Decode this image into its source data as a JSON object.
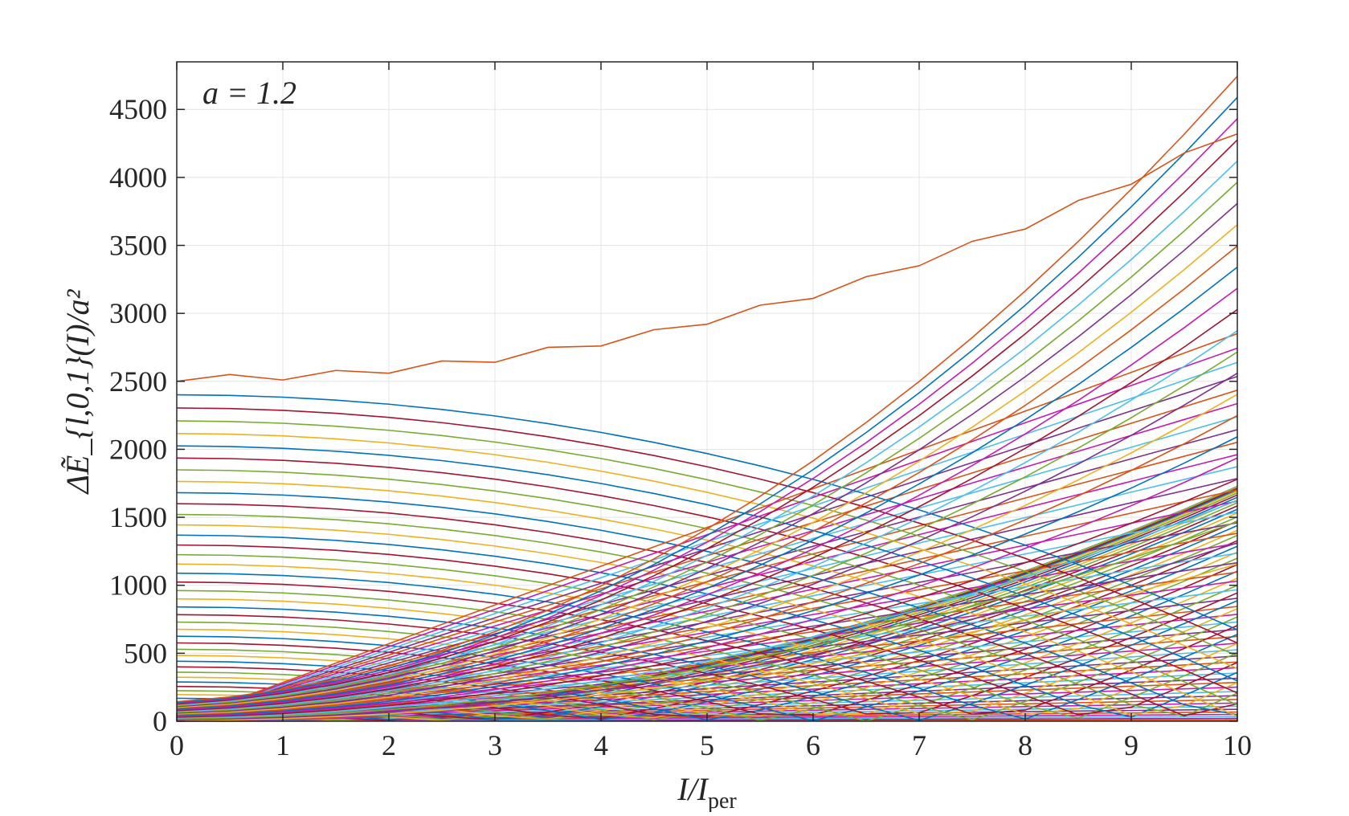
{
  "chart_data": {
    "type": "line",
    "annotation": "a = 1.2",
    "xlabel": "I/I_per",
    "xlabel_main": "I/I",
    "xlabel_sub": "per",
    "ylabel": "ΔẼ_{l,0,1}(I)/a²",
    "xlim": [
      0,
      10
    ],
    "ylim": [
      0,
      4850
    ],
    "x_ticks": [
      0,
      1,
      2,
      3,
      4,
      5,
      6,
      7,
      8,
      9,
      10
    ],
    "x_tick_labels": [
      "0",
      "1",
      "2",
      "3",
      "4",
      "5",
      "6",
      "7",
      "8",
      "9",
      "10"
    ],
    "y_ticks": [
      0,
      500,
      1000,
      1500,
      2000,
      2500,
      3000,
      3500,
      4000,
      4500
    ],
    "y_tick_labels": [
      "0",
      "500",
      "1000",
      "1500",
      "2000",
      "2500",
      "3000",
      "3500",
      "4000",
      "4500"
    ],
    "grid": true,
    "legend": "none",
    "x_sample_step": 0.5,
    "series_rule": "curves indexed l = 1..49, y(x) = |l^2 - (a*x)^2| with a = 1.2, plus upper-envelope curves",
    "parameter_a": 1.2,
    "l_max": 49,
    "envelope": {
      "x": [
        0,
        0.5,
        1,
        1.5,
        2,
        2.5,
        3,
        3.5,
        4,
        4.5,
        5,
        5.5,
        6,
        6.5,
        7,
        7.5,
        8,
        8.5,
        9,
        9.5,
        10
      ],
      "y": [
        2500,
        2550,
        2510,
        2580,
        2560,
        2650,
        2640,
        2750,
        2760,
        2880,
        2920,
        3060,
        3110,
        3270,
        3350,
        3530,
        3620,
        3830,
        3950,
        4180,
        4320
      ]
    },
    "colors": [
      "#0072BD",
      "#D95319",
      "#EDB120",
      "#7E2F8E",
      "#77AC30",
      "#4DBEEE",
      "#A2142F",
      "#C51BB2"
    ]
  }
}
